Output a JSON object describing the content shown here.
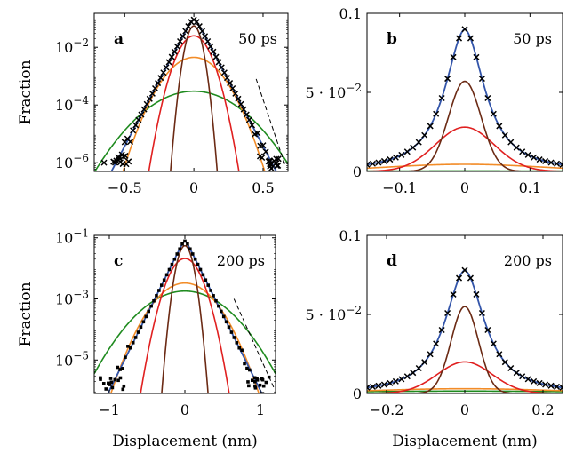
{
  "chart_data": [
    {
      "panel": "a",
      "type": "line",
      "annotation": "50 ps",
      "xlabel": "",
      "ylabel": "Fraction",
      "xscale": "linear",
      "yscale": "log",
      "xlim": [
        -0.72,
        0.68
      ],
      "ylim": [
        5e-07,
        0.15
      ],
      "xticks": [
        -0.5,
        0,
        0.5
      ],
      "xtick_labels": [
        "−0.5",
        "0",
        "0.5"
      ],
      "yticks": [
        1e-06,
        0.0001,
        0.01
      ],
      "ytick_labels": [
        "10",
        "10",
        "10"
      ],
      "ytick_exponents": [
        "−6",
        "−4",
        "−2"
      ],
      "center_peak": 0.09,
      "components": [
        {
          "color": "#1f8b1f",
          "peak": 0.0003,
          "sigma": 0.2
        },
        {
          "color": "#f28c28",
          "peak": 0.0045,
          "sigma": 0.12
        },
        {
          "color": "#e02020",
          "peak": 0.025,
          "sigma": 0.07
        },
        {
          "color": "#6b2a14",
          "peak": 0.055,
          "sigma": 0.035
        }
      ],
      "total": {
        "color": "#3355aa",
        "peak": 0.09,
        "slope_per_unit_x": 21
      },
      "guide_line": {
        "style": "dashed",
        "from": [
          0.45,
          0.0008
        ],
        "to": [
          0.66,
          8e-07
        ]
      },
      "markers": "simulation data (× marks)"
    },
    {
      "panel": "b",
      "type": "line",
      "annotation": "50 ps",
      "xlabel": "",
      "ylabel": "",
      "xscale": "linear",
      "yscale": "linear",
      "xlim": [
        -0.15,
        0.15
      ],
      "ylim": [
        0,
        0.1
      ],
      "xticks": [
        -0.1,
        0,
        0.1
      ],
      "xtick_labels": [
        "−0.1",
        "0",
        "0.1"
      ],
      "yticks": [
        0,
        0.05,
        0.1
      ],
      "ytick_labels": [
        "0",
        "5 · 10",
        "0.1"
      ],
      "ytick_exponents": [
        "",
        "−2",
        ""
      ],
      "components": [
        {
          "color": "#1f8b1f",
          "peak": 0.0003,
          "sigma": 0.2
        },
        {
          "color": "#f28c28",
          "peak": 0.0045,
          "sigma": 0.12
        },
        {
          "color": "#e02020",
          "peak": 0.028,
          "sigma": 0.045
        },
        {
          "color": "#6b2a14",
          "peak": 0.057,
          "sigma": 0.025
        }
      ],
      "total": {
        "color": "#3355aa",
        "peak": 0.09
      },
      "markers": "simulation data (× marks)"
    },
    {
      "panel": "c",
      "type": "line",
      "annotation": "200 ps",
      "xlabel": "Displacement (nm)",
      "ylabel": "Fraction",
      "xscale": "linear",
      "yscale": "log",
      "xlim": [
        -1.2,
        1.2
      ],
      "ylim": [
        8e-07,
        0.12
      ],
      "xticks": [
        -1,
        0,
        1
      ],
      "xtick_labels": [
        "−1",
        "0",
        "1"
      ],
      "yticks": [
        1e-05,
        0.001,
        0.1
      ],
      "ytick_labels": [
        "10",
        "10",
        "10"
      ],
      "ytick_exponents": [
        "−5",
        "−3",
        "−1"
      ],
      "center_peak": 0.078,
      "components": [
        {
          "color": "#1f8b1f",
          "peak": 0.0018,
          "sigma": 0.34
        },
        {
          "color": "#f28c28",
          "peak": 0.0033,
          "sigma": 0.24
        },
        {
          "color": "#e02020",
          "peak": 0.021,
          "sigma": 0.13
        },
        {
          "color": "#6b2a14",
          "peak": 0.055,
          "sigma": 0.065
        }
      ],
      "total": {
        "color": "#3355aa",
        "peak": 0.078,
        "slope_per_unit_x": 11.5
      },
      "guide_line": {
        "style": "dashed",
        "from": [
          0.65,
          0.001
        ],
        "to": [
          1.18,
          1.2e-06
        ]
      },
      "markers": "simulation data (● marks)"
    },
    {
      "panel": "d",
      "type": "line",
      "annotation": "200 ps",
      "xlabel": "Displacement (nm)",
      "ylabel": "",
      "xscale": "linear",
      "yscale": "linear",
      "xlim": [
        -0.25,
        0.25
      ],
      "ylim": [
        0,
        0.1
      ],
      "xticks": [
        -0.2,
        0,
        0.2
      ],
      "xtick_labels": [
        "−0.2",
        "0",
        "0.2"
      ],
      "yticks": [
        0,
        0.05,
        0.1
      ],
      "ytick_labels": [
        "0",
        "5 · 10",
        "0.1"
      ],
      "ytick_exponents": [
        "",
        "−2",
        ""
      ],
      "components": [
        {
          "color": "#1f8b1f",
          "peak": 0.0015,
          "sigma": 0.34
        },
        {
          "color": "#f28c28",
          "peak": 0.003,
          "sigma": 0.24
        },
        {
          "color": "#e02020",
          "peak": 0.02,
          "sigma": 0.07
        },
        {
          "color": "#6b2a14",
          "peak": 0.055,
          "sigma": 0.035
        }
      ],
      "total": {
        "color": "#3355aa",
        "peak": 0.078
      },
      "markers": "simulation data (× marks)"
    }
  ]
}
